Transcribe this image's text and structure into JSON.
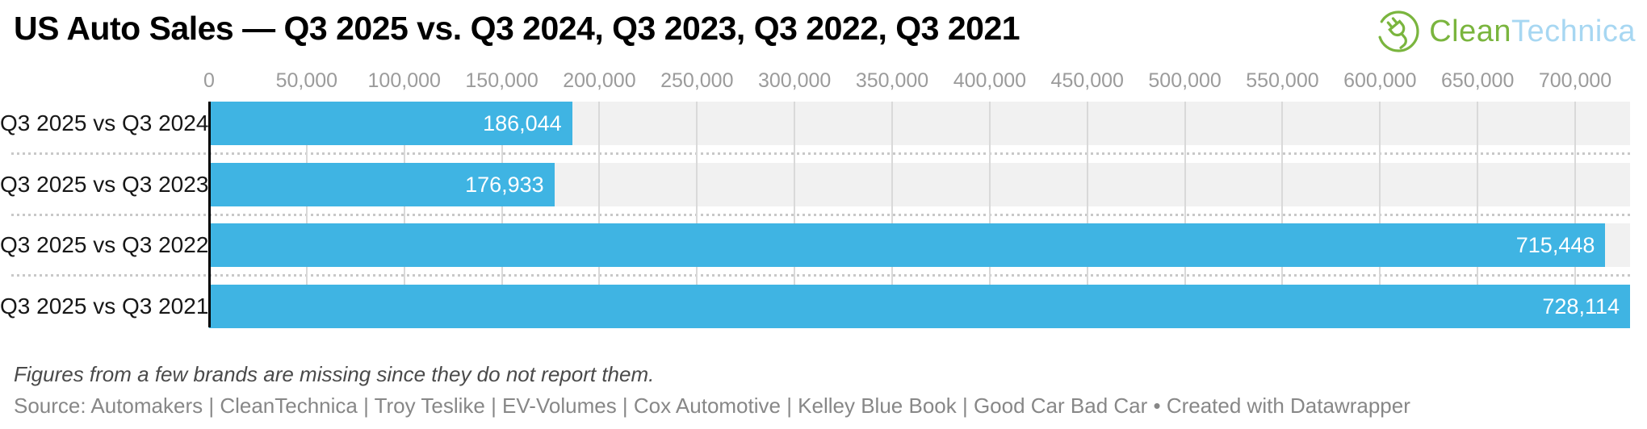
{
  "header": {
    "title": "US Auto Sales — Q3 2025 vs. Q3 2024, Q3 2023, Q3 2022, Q3 2021",
    "logo": {
      "clean": "Clean",
      "technica": "Technica",
      "green": "#7ab53e",
      "blue": "#a7d7f2"
    }
  },
  "chart_data": {
    "type": "bar",
    "orientation": "horizontal",
    "title": "US Auto Sales — Q3 2025 vs. Q3 2024, Q3 2023, Q3 2022, Q3 2021",
    "xlabel": "",
    "ylabel": "",
    "categories": [
      "Q3 2025 vs Q3 2024",
      "Q3 2025 vs Q3 2023",
      "Q3 2025 vs Q3 2022",
      "Q3 2025 vs Q3 2021"
    ],
    "values": [
      186044,
      176933,
      715448,
      728114
    ],
    "value_labels": [
      "186,044",
      "176,933",
      "715,448",
      "728,114"
    ],
    "axis": {
      "min": 0,
      "max": 728114,
      "ticks": [
        0,
        50000,
        100000,
        150000,
        200000,
        250000,
        300000,
        350000,
        400000,
        450000,
        500000,
        550000,
        600000,
        650000,
        700000
      ],
      "tick_labels": [
        "0",
        "50,000",
        "100,000",
        "150,000",
        "200,000",
        "250,000",
        "300,000",
        "350,000",
        "400,000",
        "450,000",
        "500,000",
        "550,000",
        "600,000",
        "650,000",
        "700,000"
      ]
    },
    "grid": true,
    "legend": "none",
    "colors": {
      "bar": "#3fb4e3",
      "row_stripe": "#f1f1f1",
      "gridline": "#d9d9d9",
      "value_label": "#ffffff"
    }
  },
  "footer": {
    "note": "Figures from a few brands are missing since they do not report them.",
    "source": "Source: Automakers | CleanTechnica | Troy Teslike | EV-Volumes | Cox Automotive | Kelley Blue Book | Good Car Bad Car • Created with Datawrapper"
  }
}
